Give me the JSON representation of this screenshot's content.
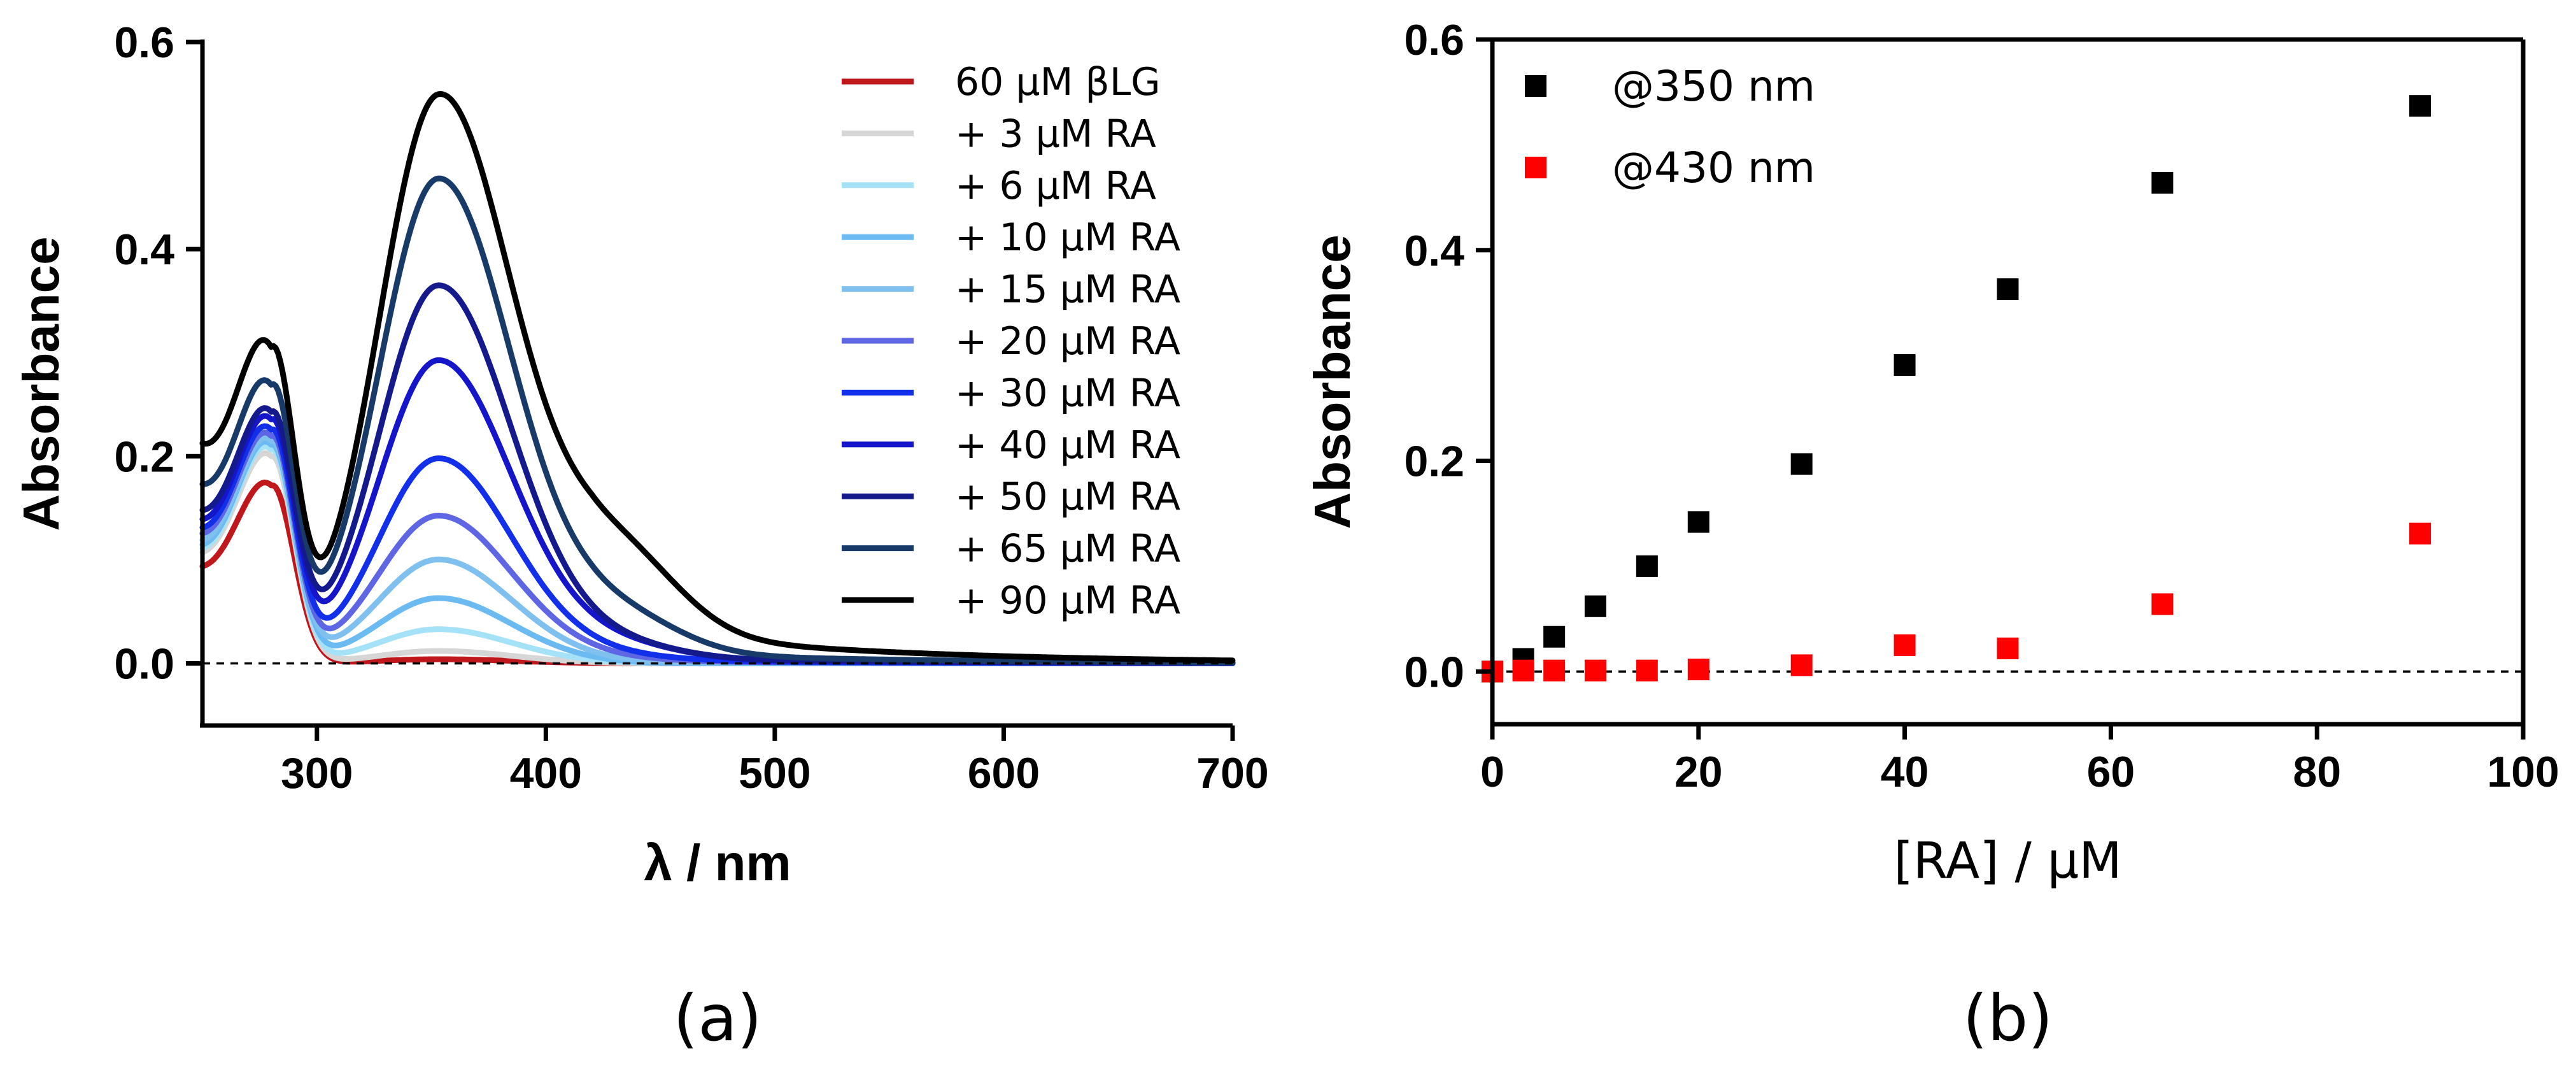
{
  "chart_data": [
    {
      "type": "line",
      "panel_label": "(a)",
      "xlabel": "λ / nm",
      "ylabel": "Absorbance",
      "xlim": [
        250,
        700
      ],
      "ylim": [
        -0.06,
        0.6
      ],
      "xticks": [
        300,
        400,
        500,
        600,
        700
      ],
      "yticks": [
        0.0,
        0.2,
        0.4,
        0.6
      ],
      "x_tick_labels": [
        "300",
        "400",
        "500",
        "600",
        "700"
      ],
      "y_tick_labels": [
        "0.0",
        "0.2",
        "0.4",
        "0.6"
      ],
      "zero_line": true,
      "legend_position": "top-right",
      "series": [
        {
          "name": "60 μM βLG",
          "color": "#c0171c",
          "A_uv": 0.172,
          "A_peak": 0.004,
          "A_shoulder": 0.0,
          "A_tail": 0.0,
          "A_base": 0.072
        },
        {
          "name": "+ 3 μM RA",
          "color": "#d6d6d6",
          "A_uv": 0.2,
          "A_peak": 0.012,
          "A_shoulder": 0.0,
          "A_tail": 0.0,
          "A_base": 0.082
        },
        {
          "name": "+ 6 μM RA",
          "color": "#a6e2f7",
          "A_uv": 0.206,
          "A_peak": 0.033,
          "A_shoulder": 0.0,
          "A_tail": 0.0,
          "A_base": 0.085
        },
        {
          "name": "+ 10 μM RA",
          "color": "#6cbaf2",
          "A_uv": 0.21,
          "A_peak": 0.063,
          "A_shoulder": 0.0,
          "A_tail": 0.0,
          "A_base": 0.088
        },
        {
          "name": "+ 15 μM RA",
          "color": "#7fc0ef",
          "A_uv": 0.213,
          "A_peak": 0.1,
          "A_shoulder": 0.0,
          "A_tail": 0.001,
          "A_base": 0.092
        },
        {
          "name": "+ 20 μM RA",
          "color": "#5f66e3",
          "A_uv": 0.217,
          "A_peak": 0.142,
          "A_shoulder": 0.002,
          "A_tail": 0.002,
          "A_base": 0.098
        },
        {
          "name": "+ 30 μM RA",
          "color": "#1230ea",
          "A_uv": 0.222,
          "A_peak": 0.197,
          "A_shoulder": 0.004,
          "A_tail": 0.003,
          "A_base": 0.103
        },
        {
          "name": "+ 40 μM RA",
          "color": "#1515c9",
          "A_uv": 0.23,
          "A_peak": 0.291,
          "A_shoulder": 0.013,
          "A_tail": 0.005,
          "A_base": 0.11
        },
        {
          "name": "+ 50 μM RA",
          "color": "#141a8c",
          "A_uv": 0.236,
          "A_peak": 0.363,
          "A_shoulder": 0.012,
          "A_tail": 0.006,
          "A_base": 0.118
        },
        {
          "name": "+ 65 μM RA",
          "color": "#183a68",
          "A_uv": 0.26,
          "A_peak": 0.464,
          "A_shoulder": 0.035,
          "A_tail": 0.012,
          "A_base": 0.14
        },
        {
          "name": "+ 90 μM RA",
          "color": "#000000",
          "A_uv": 0.295,
          "A_peak": 0.537,
          "A_shoulder": 0.075,
          "A_tail": 0.036,
          "A_base": 0.175
        }
      ]
    },
    {
      "type": "scatter",
      "panel_label": "(b)",
      "xlabel": "[RA] / μM",
      "ylabel": "Absorbance",
      "xlim": [
        0,
        100
      ],
      "ylim": [
        -0.05,
        0.6
      ],
      "xticks": [
        0,
        20,
        40,
        60,
        80,
        100
      ],
      "yticks": [
        0.0,
        0.2,
        0.4,
        0.6
      ],
      "x_tick_labels": [
        "0",
        "20",
        "40",
        "60",
        "80",
        "100"
      ],
      "y_tick_labels": [
        "0.0",
        "0.2",
        "0.4",
        "0.6"
      ],
      "zero_line": true,
      "legend_position": "top-left",
      "series": [
        {
          "name": "@350 nm",
          "color": "#000000",
          "x": [
            0,
            3,
            6,
            10,
            15,
            20,
            30,
            40,
            50,
            65,
            90
          ],
          "y": [
            0.0,
            0.012,
            0.033,
            0.062,
            0.1,
            0.142,
            0.197,
            0.291,
            0.363,
            0.464,
            0.537
          ]
        },
        {
          "name": "@430 nm",
          "color": "#ff0000",
          "x": [
            0,
            3,
            6,
            10,
            15,
            20,
            30,
            40,
            50,
            65,
            90
          ],
          "y": [
            0.0,
            0.001,
            0.001,
            0.001,
            0.001,
            0.002,
            0.006,
            0.025,
            0.022,
            0.064,
            0.131
          ]
        }
      ]
    }
  ]
}
